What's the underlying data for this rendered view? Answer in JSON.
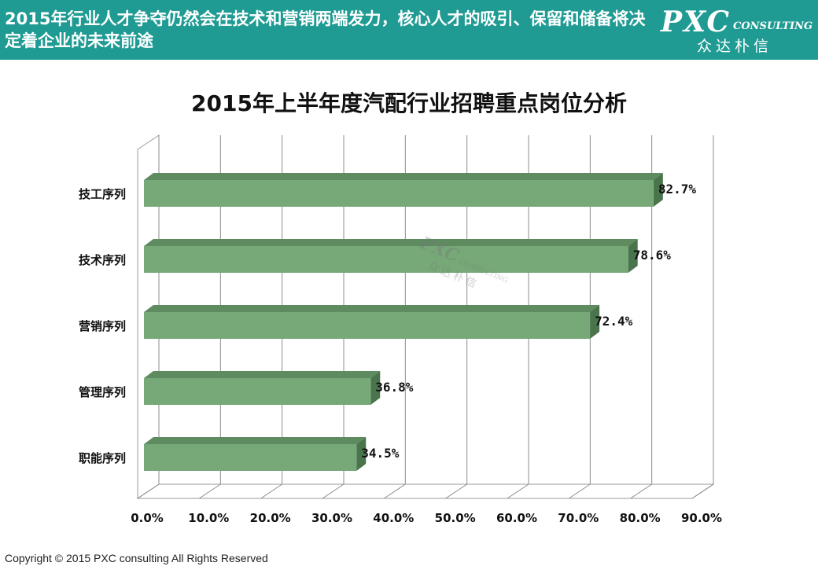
{
  "header": {
    "title": "2015年行业人才争夺仍然会在技术和营销两端发力，核心人才的吸引、保留和储备将决定着企业的未来前途"
  },
  "logo": {
    "main": "PXC",
    "sub": "CONSULTING",
    "cn": "众达朴信"
  },
  "watermark": {
    "main": "PXC",
    "sub": "CONSULTING",
    "cn": "众达朴信"
  },
  "colors": {
    "header_bg": "#1f9b93",
    "bar_front": "#76a878",
    "bar_top": "#5e8c60",
    "bar_side": "#4a744c"
  },
  "chart_data": {
    "type": "bar",
    "orientation": "horizontal",
    "style": "3d",
    "title": "2015年上半年度汽配行业招聘重点岗位分析",
    "categories": [
      "技工序列",
      "技术序列",
      "营销序列",
      "管理序列",
      "职能序列"
    ],
    "values": [
      82.7,
      78.6,
      72.4,
      36.8,
      34.5
    ],
    "value_labels": [
      "82.7%",
      "78.6%",
      "72.4%",
      "36.8%",
      "34.5%"
    ],
    "xlim": [
      0,
      90
    ],
    "x_ticks": [
      "0.0%",
      "10.0%",
      "20.0%",
      "30.0%",
      "40.0%",
      "50.0%",
      "60.0%",
      "70.0%",
      "80.0%",
      "90.0%"
    ],
    "grid": true,
    "legend": "none"
  },
  "footer": {
    "copyright": "Copyright © 2015  PXC consulting All Rights Reserved"
  }
}
